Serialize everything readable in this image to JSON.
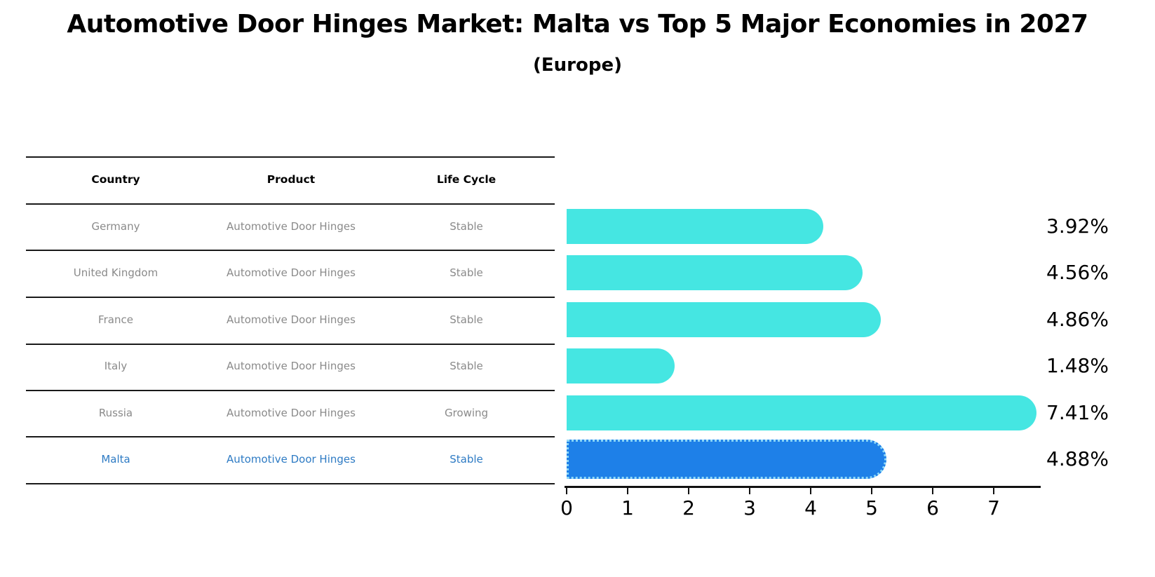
{
  "title": "Automotive Door Hinges Market: Malta vs Top 5 Major Economies in 2027",
  "subtitle": "(Europe)",
  "table": {
    "headers": [
      "Country",
      "Product",
      "Life Cycle"
    ],
    "rows": [
      {
        "country": "Germany",
        "product": "Automotive Door Hinges",
        "life_cycle": "Stable",
        "highlighted": false
      },
      {
        "country": "United Kingdom",
        "product": "Automotive Door Hinges",
        "life_cycle": "Stable",
        "highlighted": false
      },
      {
        "country": "France",
        "product": "Automotive Door Hinges",
        "life_cycle": "Stable",
        "highlighted": false
      },
      {
        "country": "Italy",
        "product": "Automotive Door Hinges",
        "life_cycle": "Stable",
        "highlighted": false
      },
      {
        "country": "Russia",
        "product": "Automotive Door Hinges",
        "life_cycle": "Growing",
        "highlighted": false
      },
      {
        "country": "Malta",
        "product": "Automotive Door Hinges",
        "life_cycle": "Stable",
        "highlighted": true
      }
    ]
  },
  "chart_data": {
    "type": "bar",
    "orientation": "horizontal",
    "title": "Automotive Door Hinges Market: Malta vs Top 5 Major Economies in 2027 (Europe)",
    "categories": [
      "Germany",
      "United Kingdom",
      "France",
      "Italy",
      "Russia",
      "Malta"
    ],
    "values": [
      3.92,
      4.56,
      4.86,
      1.48,
      7.41,
      4.88
    ],
    "value_labels": [
      "3.92%",
      "4.56%",
      "4.86%",
      "1.48%",
      "7.41%",
      "4.88%"
    ],
    "unit": "%",
    "xlabel": "",
    "ylabel": "",
    "xticks": [
      0,
      1,
      2,
      3,
      4,
      5,
      6,
      7
    ],
    "xlim": [
      0,
      7.76
    ],
    "grid": false,
    "legend": false,
    "highlight_index": 5,
    "bar_color": "#45e6e2",
    "highlight_bar_color": "#1e80e8",
    "highlight_border_color": "#8ed8f8"
  },
  "colors": {
    "background": "#ffffff",
    "title_text": "#000000",
    "table_header_text": "#000000",
    "table_row_text": "#8a8a8a",
    "highlight_row_text": "#2e7bc4",
    "table_line": "#1a1a1a",
    "axis": "#111111",
    "value_label_text": "#000000"
  }
}
